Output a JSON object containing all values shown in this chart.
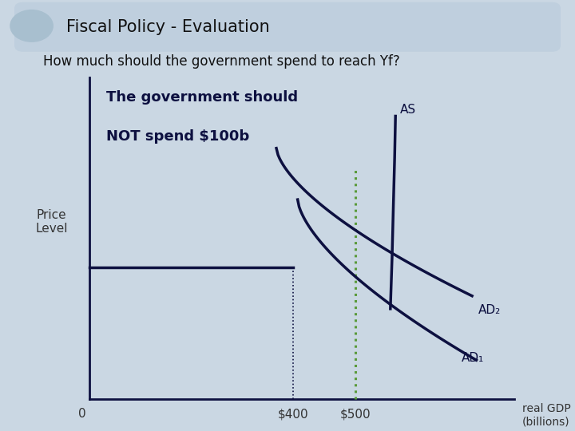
{
  "title": "Fiscal Policy - Evaluation",
  "subtitle": "How much should the government spend to reach Yf?",
  "annotation_line1": "The government should",
  "annotation_line2": "NOT spend $100b",
  "ylabel": "Price\nLevel",
  "xlabel": "real GDP\n(billions)",
  "x400_label": "$400",
  "x500_label": "$500",
  "zero_label": "0",
  "AS_label": "AS",
  "AD1_label": "AD₁",
  "AD2_label": "AD₂",
  "bg_color": "#cad7e3",
  "title_bg": "#bfcfde",
  "dark_navy": "#0d1040",
  "green_dashed": "#5a9a3a",
  "axis_color": "#0d1040",
  "text_color": "#333333"
}
